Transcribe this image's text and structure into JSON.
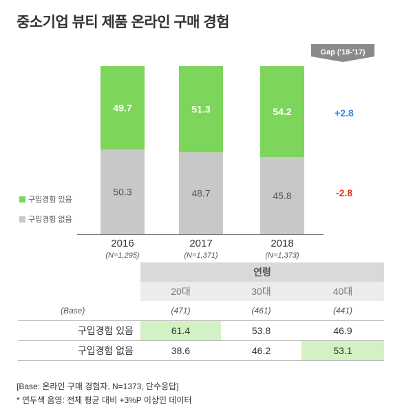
{
  "title": "중소기업 뷰티 제품 온라인 구매 경험",
  "gap": {
    "label": "Gap ('18-'17)",
    "values": [
      "+2.8",
      "-2.8"
    ],
    "colors": [
      "#2b8de6",
      "#e8321e"
    ]
  },
  "legend": [
    {
      "label": "구입경험 있음",
      "color": "#7dd65b"
    },
    {
      "label": "구입경험 없음",
      "color": "#c8c8c8"
    }
  ],
  "chart_data": {
    "type": "bar",
    "stacked": true,
    "categories": [
      "2016",
      "2017",
      "2018"
    ],
    "category_subs": [
      "(N=1,295)",
      "(N=1,371)",
      "(N=1,373)"
    ],
    "series": [
      {
        "name": "구입경험 있음",
        "color": "#7dd65b",
        "values": [
          49.7,
          51.3,
          54.2
        ]
      },
      {
        "name": "구입경험 없음",
        "color": "#c8c8c8",
        "values": [
          50.3,
          48.7,
          45.8
        ]
      }
    ],
    "ylim": [
      0,
      100
    ]
  },
  "table": {
    "group_label": "연령",
    "ages": [
      "20대",
      "30대",
      "40대"
    ],
    "base_label": "(Base)",
    "bases": [
      "(471)",
      "(461)",
      "(441)"
    ],
    "rows": [
      {
        "label": "구입경험 있음",
        "values": [
          "61.4",
          "53.8",
          "46.9"
        ],
        "highlight": [
          true,
          false,
          false
        ]
      },
      {
        "label": "구입경험 없음",
        "values": [
          "38.6",
          "46.2",
          "53.1"
        ],
        "highlight": [
          false,
          false,
          true
        ]
      }
    ]
  },
  "footnotes": [
    "[Base: 온라인 구매 경험자, N=1373, 단수응답]",
    "* 연두색 음영: 전체 평균 대비 +3%P 이상인 데이터"
  ]
}
